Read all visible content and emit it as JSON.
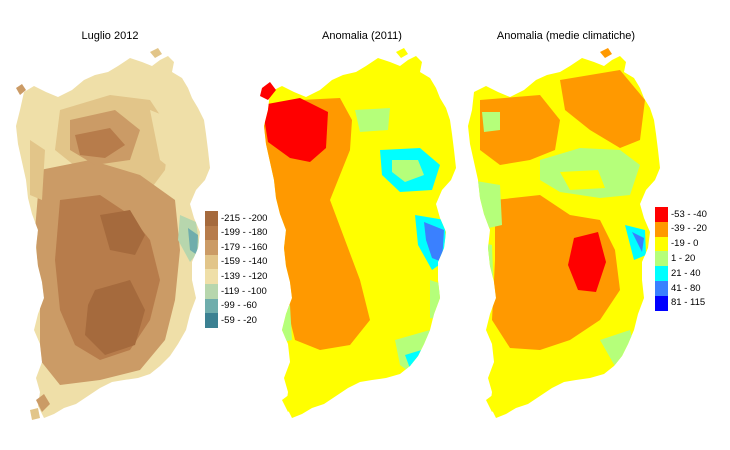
{
  "panels": [
    {
      "title": "Luglio 2012",
      "legend": [
        {
          "label": "-215 - -200",
          "color": "#a56a3d"
        },
        {
          "label": "-199 - -180",
          "color": "#b77c4b"
        },
        {
          "label": "-179 - -160",
          "color": "#cb9b66"
        },
        {
          "label": "-159 - -140",
          "color": "#e2c589"
        },
        {
          "label": "-139 - -120",
          "color": "#efdfa8"
        },
        {
          "label": "-119 - -100",
          "color": "#b7d6ad"
        },
        {
          "label": "-99 - -60",
          "color": "#6fadac"
        },
        {
          "label": "-59 - -20",
          "color": "#3b8192"
        }
      ]
    },
    {
      "title": "Anomalia (2011)"
    },
    {
      "title": "Anomalia (medie climatiche)",
      "legend": [
        {
          "label": "-53 - -40",
          "color": "#ff0000"
        },
        {
          "label": "-39 - -20",
          "color": "#ff9900"
        },
        {
          "label": "-19 - 0",
          "color": "#ffff00"
        },
        {
          "label": "1 - 20",
          "color": "#b5ff7a"
        },
        {
          "label": "21 - 40",
          "color": "#00ffff"
        },
        {
          "label": "41 - 80",
          "color": "#3a80ff"
        },
        {
          "label": "81 - 115",
          "color": "#0000ff"
        }
      ]
    }
  ]
}
